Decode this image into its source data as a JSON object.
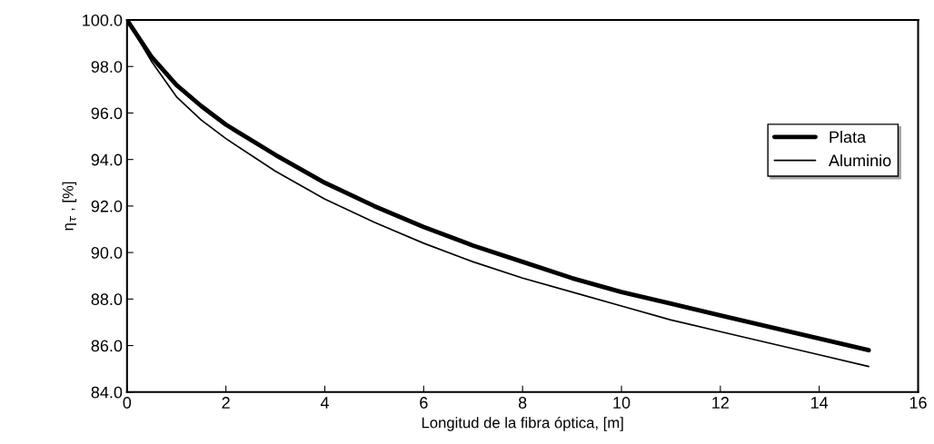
{
  "chart_data": {
    "type": "line",
    "xlabel": "Longitud de la fibra óptica, [m]",
    "ylabel": "η$_{τ}$ , [%]",
    "x": [
      0,
      0.5,
      1,
      1.5,
      2,
      3,
      4,
      5,
      6,
      7,
      8,
      9,
      10,
      11,
      12,
      13,
      14,
      15
    ],
    "series": [
      {
        "name": "Plata",
        "color": "#000000",
        "values": [
          100,
          98.4,
          97.2,
          96.3,
          95.5,
          94.2,
          93.0,
          92.0,
          91.1,
          90.3,
          89.6,
          88.9,
          88.3,
          87.8,
          87.3,
          86.8,
          86.3,
          85.8
        ]
      },
      {
        "name": "Aluminio",
        "color": "#000000",
        "values": [
          100,
          98.2,
          96.7,
          95.7,
          94.9,
          93.5,
          92.3,
          91.3,
          90.4,
          89.6,
          88.9,
          88.3,
          87.7,
          87.1,
          86.6,
          86.1,
          85.6,
          85.1
        ]
      }
    ],
    "xlim": [
      0,
      16
    ],
    "xticks": [
      0,
      2,
      4,
      6,
      8,
      10,
      12,
      14,
      16
    ],
    "ylim": [
      84,
      100
    ],
    "yticks": [
      {
        "value": 84,
        "label": "84.0"
      },
      {
        "value": 86,
        "label": "86.0"
      },
      {
        "value": 88,
        "label": "88.0"
      },
      {
        "value": 90,
        "label": "90.0"
      },
      {
        "value": 92,
        "label": "92.0"
      },
      {
        "value": 94,
        "label": "94.0"
      },
      {
        "value": 96,
        "label": "96.0"
      },
      {
        "value": 98,
        "label": "98.0"
      },
      {
        "value": 100,
        "label": "100.0"
      }
    ],
    "legend": "right",
    "grid": false,
    "marker": "none",
    "line_style": "solid"
  }
}
